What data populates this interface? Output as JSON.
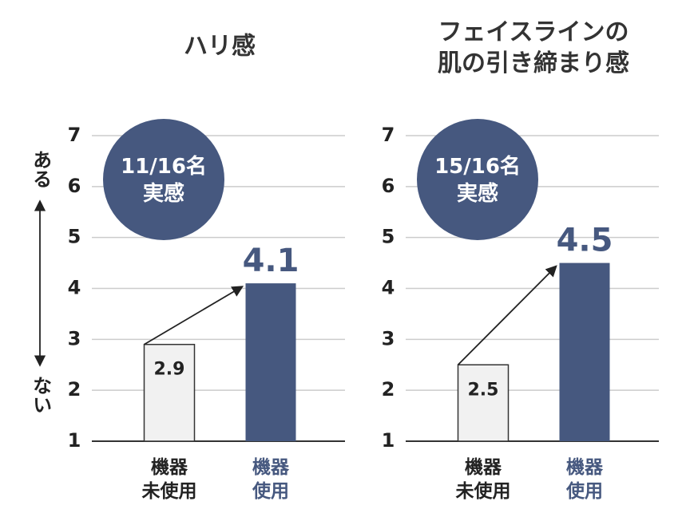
{
  "chart_data": [
    {
      "type": "bar",
      "title": "ハリ感",
      "badge": "11/16名\n実感",
      "ylabel_top": "ある",
      "ylabel_bottom": "ない",
      "categories": [
        "機器\n未使用",
        "機器\n使用"
      ],
      "values": [
        2.9,
        4.1
      ],
      "colors": [
        "#f1f1f1",
        "#46587f"
      ],
      "ylim": [
        1,
        7
      ],
      "yticks": [
        1,
        2,
        3,
        4,
        5,
        6,
        7
      ],
      "grid": true
    },
    {
      "type": "bar",
      "title": "フェイスラインの\n肌の引き締まり感",
      "badge": "15/16名\n実感",
      "categories": [
        "機器\n未使用",
        "機器\n使用"
      ],
      "values": [
        2.5,
        4.5
      ],
      "colors": [
        "#f1f1f1",
        "#46587f"
      ],
      "ylim": [
        1,
        7
      ],
      "yticks": [
        1,
        2,
        3,
        4,
        5,
        6,
        7
      ],
      "grid": true
    }
  ]
}
